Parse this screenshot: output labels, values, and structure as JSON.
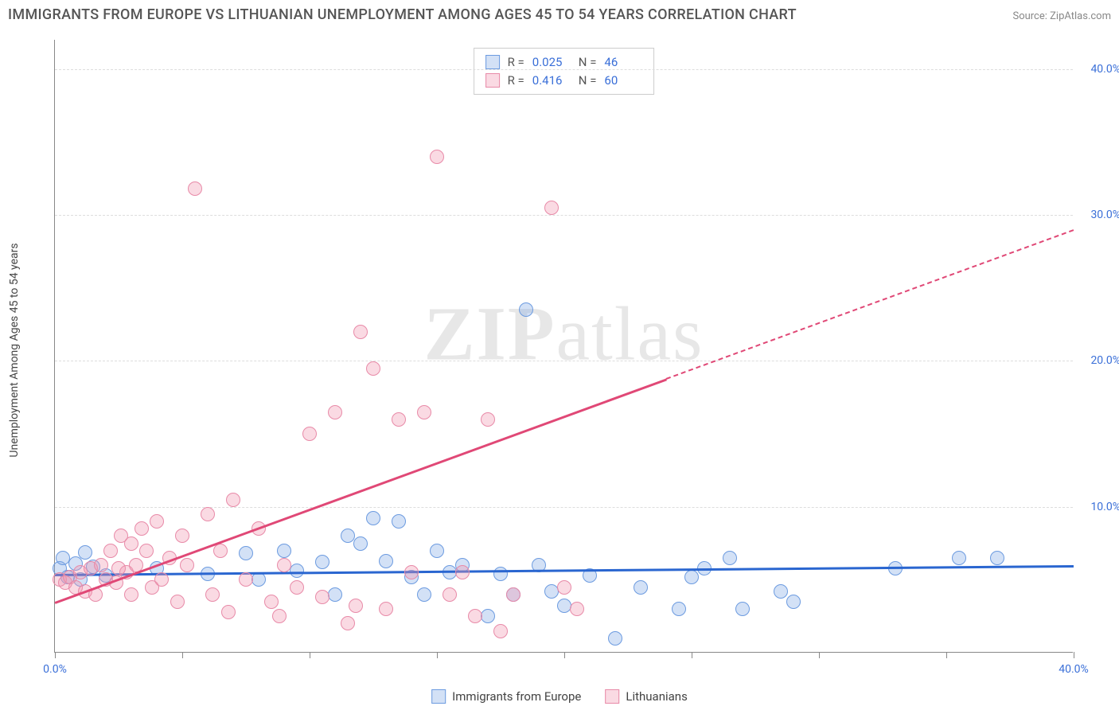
{
  "title": "IMMIGRANTS FROM EUROPE VS LITHUANIAN UNEMPLOYMENT AMONG AGES 45 TO 54 YEARS CORRELATION CHART",
  "source": "Source: ZipAtlas.com",
  "watermark_a": "ZIP",
  "watermark_b": "atlas",
  "y_axis_label": "Unemployment Among Ages 45 to 54 years",
  "chart": {
    "type": "scatter",
    "xlim": [
      0,
      40
    ],
    "ylim": [
      0,
      42
    ],
    "x_ticks": [
      0,
      5,
      10,
      15,
      20,
      25,
      30,
      35,
      40
    ],
    "x_tick_labels_shown": {
      "0": "0.0%",
      "40": "40.0%"
    },
    "y_ticks": [
      10,
      20,
      30,
      40
    ],
    "y_tick_labels": {
      "10": "10.0%",
      "20": "20.0%",
      "30": "30.0%",
      "40": "40.0%"
    },
    "background_color": "#ffffff",
    "grid_color": "#dddddd",
    "axis_color": "#888888",
    "tick_label_color": "#3a6fd8",
    "marker_radius": 9,
    "marker_stroke_width": 1.2,
    "series": [
      {
        "name": "Immigrants from Europe",
        "key": "europe",
        "fill": "rgba(130,170,230,0.35)",
        "stroke": "#6c9be0",
        "line_color": "#2a66d0",
        "R": "0.025",
        "N": "46",
        "trend": {
          "x1": 0,
          "y1": 5.4,
          "x2": 40,
          "y2": 6.0,
          "solid_until_x": 40
        },
        "points": [
          [
            0.2,
            5.8
          ],
          [
            0.5,
            5.2
          ],
          [
            0.8,
            6.1
          ],
          [
            1.0,
            5.0
          ],
          [
            1.5,
            5.9
          ],
          [
            2.0,
            5.3
          ],
          [
            4.0,
            5.8
          ],
          [
            6.0,
            5.4
          ],
          [
            7.5,
            6.8
          ],
          [
            8.0,
            5.0
          ],
          [
            9.0,
            7.0
          ],
          [
            9.5,
            5.6
          ],
          [
            10.5,
            6.2
          ],
          [
            11.0,
            4.0
          ],
          [
            11.5,
            8.0
          ],
          [
            12.0,
            7.5
          ],
          [
            12.5,
            9.2
          ],
          [
            13.0,
            6.3
          ],
          [
            13.5,
            9.0
          ],
          [
            14.0,
            5.2
          ],
          [
            14.5,
            4.0
          ],
          [
            15.0,
            7.0
          ],
          [
            15.5,
            5.5
          ],
          [
            16.0,
            6.0
          ],
          [
            17.0,
            2.5
          ],
          [
            17.5,
            5.4
          ],
          [
            18.0,
            4.0
          ],
          [
            18.5,
            23.5
          ],
          [
            19.0,
            6.0
          ],
          [
            19.5,
            4.2
          ],
          [
            20.0,
            3.2
          ],
          [
            21.0,
            5.3
          ],
          [
            22.0,
            1.0
          ],
          [
            23.0,
            4.5
          ],
          [
            24.5,
            3.0
          ],
          [
            25.0,
            5.2
          ],
          [
            25.5,
            5.8
          ],
          [
            26.5,
            6.5
          ],
          [
            27.0,
            3.0
          ],
          [
            28.5,
            4.2
          ],
          [
            29.0,
            3.5
          ],
          [
            33.0,
            5.8
          ],
          [
            35.5,
            6.5
          ],
          [
            37.0,
            6.5
          ],
          [
            0.3,
            6.5
          ],
          [
            1.2,
            6.9
          ]
        ]
      },
      {
        "name": "Lithuanians",
        "key": "lith",
        "fill": "rgba(240,150,175,0.35)",
        "stroke": "#e88aa8",
        "line_color": "#e04876",
        "R": "0.416",
        "N": "60",
        "trend": {
          "x1": 0,
          "y1": 3.5,
          "x2": 40,
          "y2": 29.0,
          "solid_until_x": 24
        },
        "points": [
          [
            0.2,
            5.0
          ],
          [
            0.4,
            4.8
          ],
          [
            0.6,
            5.2
          ],
          [
            0.8,
            4.5
          ],
          [
            1.0,
            5.5
          ],
          [
            1.2,
            4.2
          ],
          [
            1.4,
            5.8
          ],
          [
            1.6,
            4.0
          ],
          [
            1.8,
            6.0
          ],
          [
            2.0,
            5.0
          ],
          [
            2.2,
            7.0
          ],
          [
            2.4,
            4.8
          ],
          [
            2.6,
            8.0
          ],
          [
            2.8,
            5.5
          ],
          [
            3.0,
            7.5
          ],
          [
            3.2,
            6.0
          ],
          [
            3.4,
            8.5
          ],
          [
            3.6,
            7.0
          ],
          [
            3.8,
            4.5
          ],
          [
            4.0,
            9.0
          ],
          [
            4.2,
            5.0
          ],
          [
            4.5,
            6.5
          ],
          [
            5.0,
            8.0
          ],
          [
            5.2,
            6.0
          ],
          [
            5.5,
            31.8
          ],
          [
            6.0,
            9.5
          ],
          [
            6.2,
            4.0
          ],
          [
            6.5,
            7.0
          ],
          [
            7.0,
            10.5
          ],
          [
            7.5,
            5.0
          ],
          [
            8.0,
            8.5
          ],
          [
            8.5,
            3.5
          ],
          [
            9.0,
            6.0
          ],
          [
            9.5,
            4.5
          ],
          [
            10.0,
            15.0
          ],
          [
            10.5,
            3.8
          ],
          [
            11.0,
            16.5
          ],
          [
            11.5,
            2.0
          ],
          [
            12.0,
            22.0
          ],
          [
            12.5,
            19.5
          ],
          [
            13.0,
            3.0
          ],
          [
            13.5,
            16.0
          ],
          [
            14.0,
            5.5
          ],
          [
            14.5,
            16.5
          ],
          [
            15.0,
            34.0
          ],
          [
            15.5,
            4.0
          ],
          [
            16.0,
            5.5
          ],
          [
            16.5,
            2.5
          ],
          [
            17.0,
            16.0
          ],
          [
            17.5,
            1.5
          ],
          [
            18.0,
            4.0
          ],
          [
            19.5,
            30.5
          ],
          [
            20.0,
            4.5
          ],
          [
            20.5,
            3.0
          ],
          [
            3.0,
            4.0
          ],
          [
            4.8,
            3.5
          ],
          [
            6.8,
            2.8
          ],
          [
            8.8,
            2.5
          ],
          [
            11.8,
            3.2
          ],
          [
            2.5,
            5.8
          ]
        ]
      }
    ]
  },
  "bottom_legend": {
    "europe": "Immigrants from Europe",
    "lith": "Lithuanians"
  },
  "stats_labels": {
    "R": "R =",
    "N": "N ="
  }
}
